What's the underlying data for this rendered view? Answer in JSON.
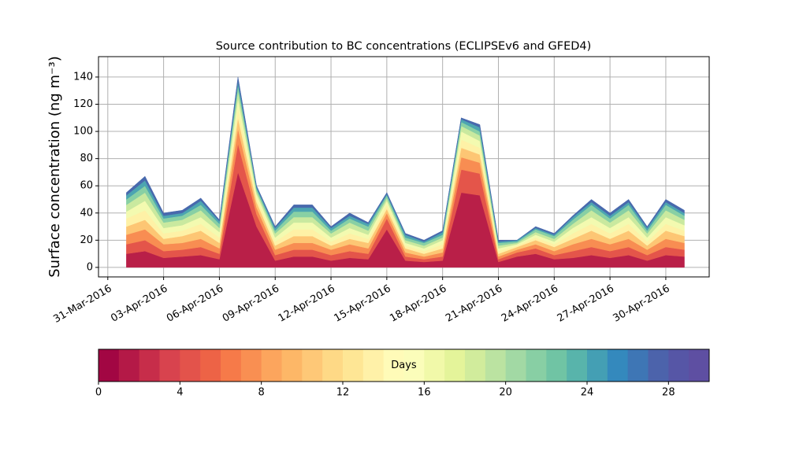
{
  "chart_data": {
    "type": "stacked_area",
    "title": "Source contribution to BC concentrations (ECLIPSEv6 and GFED4)",
    "y_label": "Surface concentration (ng m⁻³)",
    "x": [
      "2016-04-01",
      "2016-04-02",
      "2016-04-03",
      "2016-04-04",
      "2016-04-05",
      "2016-04-06",
      "2016-04-07",
      "2016-04-08",
      "2016-04-09",
      "2016-04-10",
      "2016-04-11",
      "2016-04-12",
      "2016-04-13",
      "2016-04-14",
      "2016-04-15",
      "2016-04-16",
      "2016-04-17",
      "2016-04-18",
      "2016-04-19",
      "2016-04-20",
      "2016-04-21",
      "2016-04-22",
      "2016-04-23",
      "2016-04-24",
      "2016-04-25",
      "2016-04-26",
      "2016-04-27",
      "2016-04-28",
      "2016-04-29",
      "2016-04-30",
      "2016-05-01"
    ],
    "series": [
      {
        "color": "#b91f48",
        "values": [
          10,
          12,
          7,
          8,
          9,
          6,
          70,
          30,
          5,
          8,
          8,
          5,
          7,
          6,
          28,
          5,
          4,
          5,
          55,
          53,
          4,
          8,
          10,
          6,
          7,
          9,
          7,
          9,
          5,
          9,
          8
        ]
      },
      {
        "color": "#e4554a",
        "values": [
          7,
          8,
          5,
          5,
          6,
          4,
          21,
          9,
          4,
          5,
          5,
          4,
          5,
          4,
          8,
          3,
          2,
          3,
          17,
          16,
          2,
          3,
          4,
          3,
          5,
          6,
          5,
          6,
          4,
          6,
          5
        ]
      },
      {
        "color": "#f88d52",
        "values": [
          7,
          8,
          5,
          5,
          6,
          4,
          11,
          5,
          4,
          5,
          5,
          4,
          5,
          4,
          4,
          3,
          2,
          3,
          9,
          8,
          2,
          2,
          3,
          3,
          5,
          6,
          5,
          6,
          4,
          6,
          5
        ]
      },
      {
        "color": "#fdc674",
        "values": [
          6,
          7,
          4,
          5,
          6,
          4,
          8,
          4,
          3,
          5,
          5,
          3,
          4,
          4,
          3,
          3,
          2,
          3,
          7,
          6,
          2,
          2,
          3,
          3,
          4,
          6,
          4,
          6,
          3,
          6,
          5
        ]
      },
      {
        "color": "#fef1a6",
        "values": [
          6,
          7,
          4,
          4,
          5,
          4,
          7,
          3,
          3,
          5,
          5,
          3,
          4,
          3,
          3,
          2,
          2,
          3,
          6,
          5,
          2,
          1,
          2,
          2,
          4,
          5,
          4,
          5,
          3,
          5,
          4
        ]
      },
      {
        "color": "#f3fab0",
        "values": [
          5,
          7,
          4,
          4,
          5,
          4,
          7,
          3,
          3,
          5,
          5,
          3,
          4,
          3,
          3,
          2,
          2,
          3,
          6,
          5,
          2,
          1,
          2,
          2,
          4,
          5,
          4,
          5,
          3,
          5,
          4
        ]
      },
      {
        "color": "#c9e99f",
        "values": [
          5,
          6,
          4,
          4,
          5,
          3,
          6,
          2,
          3,
          4,
          4,
          3,
          4,
          3,
          2,
          2,
          2,
          2,
          4,
          4,
          2,
          1,
          2,
          2,
          3,
          5,
          4,
          5,
          3,
          5,
          4
        ]
      },
      {
        "color": "#88d0a4",
        "values": [
          4,
          5,
          3,
          3,
          4,
          3,
          4,
          2,
          2,
          4,
          4,
          2,
          3,
          3,
          2,
          2,
          2,
          2,
          3,
          3,
          2,
          1,
          2,
          2,
          3,
          4,
          3,
          4,
          2,
          4,
          3
        ]
      },
      {
        "color": "#4ca5b1",
        "values": [
          3,
          4,
          2,
          2,
          3,
          2,
          3,
          1,
          2,
          3,
          3,
          2,
          2,
          2,
          1,
          2,
          1,
          2,
          2,
          3,
          1,
          1,
          1,
          1,
          2,
          2,
          2,
          2,
          2,
          2,
          2
        ]
      },
      {
        "color": "#4869ad",
        "values": [
          2,
          3,
          2,
          2,
          2,
          1,
          3,
          1,
          1,
          2,
          2,
          1,
          2,
          1,
          1,
          1,
          1,
          1,
          1,
          2,
          1,
          0,
          1,
          1,
          1,
          2,
          2,
          2,
          1,
          2,
          2
        ]
      }
    ],
    "xlim": [
      "2016-03-30T12:00",
      "2016-05-02T08:00"
    ],
    "xticks": [
      {
        "value": "2016-03-31",
        "label": "31-Mar-2016"
      },
      {
        "value": "2016-04-03",
        "label": "03-Apr-2016"
      },
      {
        "value": "2016-04-06",
        "label": "06-Apr-2016"
      },
      {
        "value": "2016-04-09",
        "label": "09-Apr-2016"
      },
      {
        "value": "2016-04-12",
        "label": "12-Apr-2016"
      },
      {
        "value": "2016-04-15",
        "label": "15-Apr-2016"
      },
      {
        "value": "2016-04-18",
        "label": "18-Apr-2016"
      },
      {
        "value": "2016-04-21",
        "label": "21-Apr-2016"
      },
      {
        "value": "2016-04-24",
        "label": "24-Apr-2016"
      },
      {
        "value": "2016-04-27",
        "label": "27-Apr-2016"
      },
      {
        "value": "2016-04-30",
        "label": "30-Apr-2016"
      }
    ],
    "ylim": [
      -7,
      155
    ],
    "yticks": [
      0,
      20,
      40,
      60,
      80,
      100,
      120,
      140
    ],
    "grid": true,
    "colorbar": {
      "label": "Days",
      "lim": [
        0,
        30
      ],
      "ticks": [
        0,
        4,
        8,
        12,
        16,
        20,
        24,
        28
      ],
      "colors": [
        "#a20643",
        "#b41947",
        "#c72d4a",
        "#d8434e",
        "#e3534b",
        "#ed6346",
        "#f67a49",
        "#f98f52",
        "#fca55d",
        "#fdb767",
        "#fec877",
        "#fed986",
        "#fee695",
        "#fff1a8",
        "#fffbb8",
        "#fbfdba",
        "#f1f9a9",
        "#e4f49a",
        "#d1ec9c",
        "#bbe3a1",
        "#a2d9a4",
        "#88cfa4",
        "#70c4a4",
        "#58b4ab",
        "#449fb4",
        "#3489bd",
        "#3e76b5",
        "#4c63ab",
        "#5656a6",
        "#5e4fa2"
      ]
    }
  }
}
